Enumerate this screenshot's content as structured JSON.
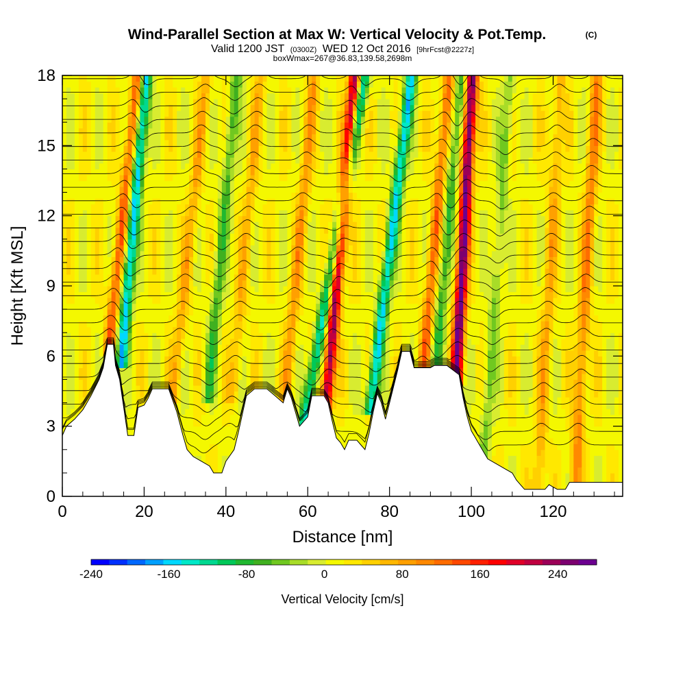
{
  "title": {
    "main": "Wind-Parallel Section at Max W: Vertical Velocity & Pot.Temp.",
    "copyright": "(C)",
    "valid_prefix": "Valid 1200 JST",
    "valid_utc": "(0300Z)",
    "valid_date": "WED 12 Oct 2016",
    "forecast": "[9hrFcst@2227z]",
    "boxwmax": "boxWmax=267@36.83,139.58,2698m"
  },
  "chart_data": {
    "type": "heatmap",
    "xlabel": "Distance [nm]",
    "ylabel": "Height [Kft MSL]",
    "xlim": [
      0,
      137
    ],
    "ylim": [
      0,
      18
    ],
    "x_ticks": [
      "0",
      "20",
      "40",
      "60",
      "80",
      "100",
      "120"
    ],
    "y_ticks": [
      "0",
      "3",
      "6",
      "9",
      "12",
      "15",
      "18"
    ],
    "terrain_kft": [
      [
        0,
        2.6
      ],
      [
        1,
        3.0
      ],
      [
        3,
        3.3
      ],
      [
        5,
        3.7
      ],
      [
        7,
        4.3
      ],
      [
        9,
        5.0
      ],
      [
        10,
        5.5
      ],
      [
        11,
        6.5
      ],
      [
        12.5,
        6.5
      ],
      [
        13,
        5.6
      ],
      [
        14,
        5.0
      ],
      [
        15,
        3.8
      ],
      [
        16,
        2.6
      ],
      [
        17.5,
        2.6
      ],
      [
        18.5,
        3.8
      ],
      [
        20,
        3.9
      ],
      [
        21,
        4.2
      ],
      [
        22,
        4.6
      ],
      [
        26,
        4.6
      ],
      [
        27,
        4.1
      ],
      [
        28,
        3.6
      ],
      [
        29.5,
        2.6
      ],
      [
        30.5,
        2.0
      ],
      [
        32,
        1.7
      ],
      [
        34,
        1.5
      ],
      [
        36,
        1.3
      ],
      [
        37,
        1.0
      ],
      [
        39,
        1.0
      ],
      [
        40,
        1.5
      ],
      [
        42,
        2.0
      ],
      [
        43,
        2.7
      ],
      [
        44,
        3.5
      ],
      [
        45,
        4.3
      ],
      [
        47,
        4.6
      ],
      [
        50,
        4.6
      ],
      [
        52,
        4.3
      ],
      [
        54,
        4.0
      ],
      [
        55,
        4.6
      ],
      [
        56,
        4.2
      ],
      [
        58,
        3.0
      ],
      [
        60,
        3.4
      ],
      [
        61,
        4.3
      ],
      [
        62,
        4.3
      ],
      [
        63,
        4.3
      ],
      [
        64,
        4.3
      ],
      [
        65,
        4.0
      ],
      [
        66,
        3.2
      ],
      [
        67,
        2.5
      ],
      [
        68,
        2.3
      ],
      [
        69,
        2.0
      ],
      [
        70,
        2.4
      ],
      [
        72,
        2.4
      ],
      [
        73,
        2.2
      ],
      [
        74,
        2.0
      ],
      [
        75,
        2.7
      ],
      [
        76,
        3.6
      ],
      [
        77,
        4.4
      ],
      [
        78,
        4.0
      ],
      [
        79,
        3.3
      ],
      [
        80,
        4.0
      ],
      [
        81,
        4.7
      ],
      [
        82,
        5.4
      ],
      [
        83,
        6.2
      ],
      [
        85,
        6.2
      ],
      [
        86,
        5.5
      ],
      [
        90,
        5.5
      ],
      [
        91,
        5.6
      ],
      [
        93,
        5.6
      ],
      [
        94,
        5.6
      ],
      [
        97,
        5.2
      ],
      [
        98,
        4.2
      ],
      [
        99,
        3.4
      ],
      [
        100,
        2.8
      ],
      [
        101,
        2.5
      ],
      [
        102,
        2.2
      ],
      [
        103,
        1.9
      ],
      [
        104,
        1.6
      ],
      [
        106,
        1.4
      ],
      [
        108,
        1.2
      ],
      [
        110,
        1.0
      ],
      [
        111,
        0.7
      ],
      [
        112,
        0.5
      ],
      [
        113,
        0.3
      ],
      [
        118,
        0.3
      ],
      [
        119,
        0.5
      ],
      [
        120,
        0.4
      ],
      [
        121,
        0.3
      ],
      [
        123,
        0.3
      ],
      [
        124,
        0.6
      ],
      [
        137,
        0.6
      ]
    ],
    "updraft_cores": [
      {
        "x": 13,
        "top": 18,
        "bottom": 6.5,
        "w": 120,
        "lean": 6
      },
      {
        "x": 30,
        "top": 18,
        "bottom": 4.5,
        "w": 60,
        "lean": 6
      },
      {
        "x": 44,
        "top": 18,
        "bottom": 4.5,
        "w": 50,
        "lean": 5
      },
      {
        "x": 57,
        "top": 18,
        "bottom": 4.5,
        "w": 70,
        "lean": 5
      },
      {
        "x": 67,
        "top": 18,
        "bottom": 4.0,
        "w": 230,
        "lean": 5
      },
      {
        "x": 90,
        "top": 18,
        "bottom": 5.6,
        "w": 110,
        "lean": 5
      },
      {
        "x": 97.5,
        "top": 18,
        "bottom": 5.2,
        "w": 260,
        "lean": 3
      },
      {
        "x": 119,
        "top": 18,
        "bottom": 0.6,
        "w": 60,
        "lean": 3
      },
      {
        "x": 128,
        "top": 18,
        "bottom": 0.6,
        "w": 90,
        "lean": 3
      }
    ],
    "downdraft_cores": [
      {
        "x": 16,
        "top": 18,
        "bottom": 6.0,
        "w": -180,
        "lean": 5
      },
      {
        "x": 38,
        "top": 18,
        "bottom": 4.5,
        "w": -80,
        "lean": 5
      },
      {
        "x": 65,
        "top": 18,
        "bottom": 3.0,
        "w": -150,
        "lean": 10
      },
      {
        "x": 79,
        "top": 18,
        "bottom": 4.0,
        "w": -170,
        "lean": 7
      },
      {
        "x": 93,
        "top": 18,
        "bottom": 5.6,
        "w": -90,
        "lean": 5
      },
      {
        "x": 106,
        "top": 18,
        "bottom": 2.0,
        "w": -60,
        "lean": 4
      }
    ],
    "colorbar": {
      "title": "Vertical Velocity [cm/s]",
      "labels": [
        "-240",
        "-160",
        "-80",
        "0",
        "80",
        "160",
        "240"
      ],
      "colors": [
        "#0000ff",
        "#0030ff",
        "#0068ff",
        "#00a0ff",
        "#00d8ff",
        "#00e8c8",
        "#00d890",
        "#00c858",
        "#20b830",
        "#40b020",
        "#70c820",
        "#a8dc28",
        "#d8ec30",
        "#f4f800",
        "#ffe800",
        "#ffd000",
        "#ffb800",
        "#ffa000",
        "#ff8800",
        "#ff6c00",
        "#ff4800",
        "#ff2000",
        "#ff0000",
        "#e00028",
        "#c00040",
        "#9c0058",
        "#7c0070",
        "#6c0090"
      ]
    }
  }
}
